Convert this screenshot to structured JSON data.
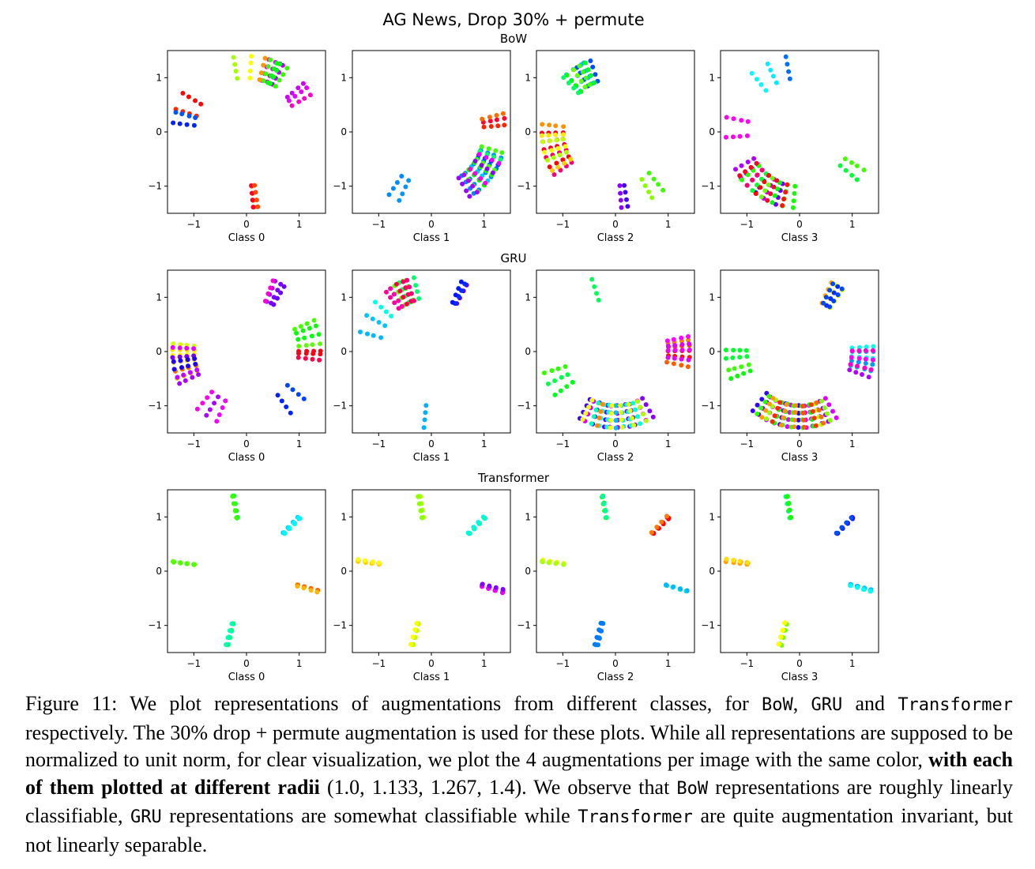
{
  "figure": {
    "title": "AG News, Drop 30% + permute",
    "row_titles": [
      "BoW",
      "GRU",
      "Transformer"
    ],
    "radii": [
      1.0,
      1.133,
      1.267,
      1.4
    ]
  },
  "chart_data": {
    "type": "scatter",
    "title": "AG News, Drop 30% + permute",
    "rows": [
      "BoW",
      "GRU",
      "Transformer"
    ],
    "columns": [
      "Class 0",
      "Class 1",
      "Class 2",
      "Class 3"
    ],
    "xlim": [
      -1.5,
      1.5
    ],
    "ylim": [
      -1.5,
      1.5
    ],
    "xticks": [
      -1,
      0,
      1
    ],
    "yticks": [
      -1,
      0,
      1
    ],
    "xtick_labels": [
      "−1",
      "0",
      "1"
    ],
    "ytick_labels": [
      "−1",
      "0",
      "1"
    ],
    "grid": false,
    "radii": [
      1.0,
      1.133,
      1.267,
      1.4
    ],
    "point_color_encoding": "same color for the 4 augmentations of one image",
    "panels": [
      {
        "row": "BoW",
        "xlabel": "Class 0",
        "clusters": [
          {
            "angles_deg": [
              60,
              72
            ],
            "n": 4,
            "hue": 280
          },
          {
            "angles_deg": [
              58,
              70
            ],
            "n": 4,
            "hue": 130
          },
          {
            "angles_deg": [
              75,
              100
            ],
            "n": 3,
            "hue": 60
          },
          {
            "angles_deg": [
              150,
              162
            ],
            "n": 2,
            "hue": 0
          },
          {
            "angles_deg": [
              166,
              172
            ],
            "n": 2,
            "hue": 210
          },
          {
            "angles_deg": [
              30,
              40
            ],
            "n": 3,
            "hue": 300
          },
          {
            "angles_deg": [
              275,
              278
            ],
            "n": 3,
            "hue": 15
          }
        ]
      },
      {
        "row": "BoW",
        "xlabel": "Class 1",
        "clusters": [
          {
            "angles_deg": [
              -55,
              -20
            ],
            "n": 8,
            "hue": 200
          },
          {
            "angles_deg": [
              -50,
              -15
            ],
            "n": 6,
            "hue": 120
          },
          {
            "angles_deg": [
              -60,
              -25
            ],
            "n": 5,
            "hue": 290
          },
          {
            "angles_deg": [
              5,
              15
            ],
            "n": 3,
            "hue": 10
          },
          {
            "angles_deg": [
              235,
              245
            ],
            "n": 2,
            "hue": 185
          }
        ]
      },
      {
        "row": "BoW",
        "xlabel": "Class 2",
        "clusters": [
          {
            "angles_deg": [
              110,
              130
            ],
            "n": 6,
            "hue": 210
          },
          {
            "angles_deg": [
              115,
              135
            ],
            "n": 5,
            "hue": 120
          },
          {
            "angles_deg": [
              180,
              215
            ],
            "n": 6,
            "hue": 340
          },
          {
            "angles_deg": [
              175,
              210
            ],
            "n": 6,
            "hue": 55
          },
          {
            "angles_deg": [
              -60,
              -50
            ],
            "n": 2,
            "hue": 110
          },
          {
            "angles_deg": [
              -85,
              -80
            ],
            "n": 2,
            "hue": 260
          }
        ]
      },
      {
        "row": "BoW",
        "xlabel": "Class 3",
        "clusters": [
          {
            "angles_deg": [
              210,
              250
            ],
            "n": 6,
            "hue": 265
          },
          {
            "angles_deg": [
              220,
              265
            ],
            "n": 6,
            "hue": 120
          },
          {
            "angles_deg": [
              215,
              255
            ],
            "n": 5,
            "hue": 350
          },
          {
            "angles_deg": [
              100,
              130
            ],
            "n": 3,
            "hue": 190
          },
          {
            "angles_deg": [
              170,
              185
            ],
            "n": 2,
            "hue": 320
          },
          {
            "angles_deg": [
              -40,
              -30
            ],
            "n": 2,
            "hue": 120
          }
        ]
      },
      {
        "row": "GRU",
        "xlabel": "Class 0",
        "clusters": [
          {
            "angles_deg": [
              175,
              200
            ],
            "n": 8,
            "hue": 50
          },
          {
            "angles_deg": [
              178,
              205
            ],
            "n": 6,
            "hue": 270
          },
          {
            "angles_deg": [
              60,
              70
            ],
            "n": 4,
            "hue": 290
          },
          {
            "angles_deg": [
              5,
              25
            ],
            "n": 4,
            "hue": 110
          },
          {
            "angles_deg": [
              -5,
              0
            ],
            "n": 3,
            "hue": 0
          },
          {
            "angles_deg": [
              230,
              245
            ],
            "n": 3,
            "hue": 305
          },
          {
            "angles_deg": [
              -55,
              -40
            ],
            "n": 2,
            "hue": 220
          }
        ]
      },
      {
        "row": "GRU",
        "xlabel": "Class 1",
        "clusters": [
          {
            "angles_deg": [
              105,
              125
            ],
            "n": 6,
            "hue": 120
          },
          {
            "angles_deg": [
              108,
              128
            ],
            "n": 5,
            "hue": 320
          },
          {
            "angles_deg": [
              60,
              66
            ],
            "n": 3,
            "hue": 250
          },
          {
            "angles_deg": [
              140,
              165
            ],
            "n": 3,
            "hue": 185
          },
          {
            "angles_deg": [
              264,
              266
            ],
            "n": 1,
            "hue": 185
          }
        ]
      },
      {
        "row": "GRU",
        "xlabel": "Class 2",
        "clusters": [
          {
            "angles_deg": [
              -120,
              -60
            ],
            "n": 10,
            "hue": 275
          },
          {
            "angles_deg": [
              -110,
              -70
            ],
            "n": 7,
            "hue": 185
          },
          {
            "angles_deg": [
              -115,
              -65
            ],
            "n": 6,
            "hue": 55
          },
          {
            "angles_deg": [
              -10,
              10
            ],
            "n": 5,
            "hue": 10
          },
          {
            "angles_deg": [
              -5,
              12
            ],
            "n": 4,
            "hue": 300
          },
          {
            "angles_deg": [
              195,
              215
            ],
            "n": 3,
            "hue": 125
          },
          {
            "angles_deg": [
              110,
              112
            ],
            "n": 1,
            "hue": 125
          }
        ]
      },
      {
        "row": "GRU",
        "xlabel": "Class 3",
        "clusters": [
          {
            "angles_deg": [
              -130,
              -60
            ],
            "n": 12,
            "hue": 270
          },
          {
            "angles_deg": [
              -125,
              -65
            ],
            "n": 9,
            "hue": 100
          },
          {
            "angles_deg": [
              -120,
              -70
            ],
            "n": 7,
            "hue": 15
          },
          {
            "angles_deg": [
              -15,
              5
            ],
            "n": 5,
            "hue": 185
          },
          {
            "angles_deg": [
              -20,
              0
            ],
            "n": 4,
            "hue": 300
          },
          {
            "angles_deg": [
              180,
              200
            ],
            "n": 4,
            "hue": 120
          },
          {
            "angles_deg": [
              55,
              65
            ],
            "n": 3,
            "hue": 55
          },
          {
            "angles_deg": [
              55,
              62
            ],
            "n": 3,
            "hue": 205
          }
        ]
      },
      {
        "row": "Transformer",
        "xlabel": "Class 0",
        "clusters": [
          {
            "angles_deg": [
              100,
              100
            ],
            "n": 4,
            "hue": 130
          },
          {
            "angles_deg": [
              45,
              45
            ],
            "n": 4,
            "hue": 180
          },
          {
            "angles_deg": [
              -15,
              -15
            ],
            "n": 4,
            "hue": 40
          },
          {
            "angles_deg": [
              255,
              255
            ],
            "n": 4,
            "hue": 165
          },
          {
            "angles_deg": [
              172,
              172
            ],
            "n": 4,
            "hue": 100
          }
        ]
      },
      {
        "row": "Transformer",
        "xlabel": "Class 1",
        "clusters": [
          {
            "angles_deg": [
              100,
              100
            ],
            "n": 4,
            "hue": 90
          },
          {
            "angles_deg": [
              45,
              45
            ],
            "n": 4,
            "hue": 185
          },
          {
            "angles_deg": [
              -15,
              -15
            ],
            "n": 4,
            "hue": 285
          },
          {
            "angles_deg": [
              255,
              255
            ],
            "n": 4,
            "hue": 85
          },
          {
            "angles_deg": [
              172,
              172
            ],
            "n": 4,
            "hue": 38
          }
        ]
      },
      {
        "row": "Transformer",
        "xlabel": "Class 2",
        "clusters": [
          {
            "angles_deg": [
              100,
              100
            ],
            "n": 4,
            "hue": 140
          },
          {
            "angles_deg": [
              45,
              45
            ],
            "n": 4,
            "hue": 20
          },
          {
            "angles_deg": [
              -15,
              -15
            ],
            "n": 4,
            "hue": 180
          },
          {
            "angles_deg": [
              255,
              255
            ],
            "n": 4,
            "hue": 205
          },
          {
            "angles_deg": [
              172,
              172
            ],
            "n": 4,
            "hue": 85
          }
        ]
      },
      {
        "row": "Transformer",
        "xlabel": "Class 3",
        "clusters": [
          {
            "angles_deg": [
              100,
              100
            ],
            "n": 4,
            "hue": 130
          },
          {
            "angles_deg": [
              45,
              45
            ],
            "n": 4,
            "hue": 235
          },
          {
            "angles_deg": [
              -15,
              -15
            ],
            "n": 4,
            "hue": 180
          },
          {
            "angles_deg": [
              255,
              255
            ],
            "n": 4,
            "hue": 75
          },
          {
            "angles_deg": [
              172,
              172
            ],
            "n": 4,
            "hue": 38
          }
        ]
      }
    ]
  },
  "caption": {
    "p1": "Figure 11: We plot representations of augmentations from different classes, for ",
    "m1": "BoW",
    "p2": ", ",
    "m2": "GRU",
    "p3": " and ",
    "m3": "Transformer",
    "p4": " respectively. The 30% drop + permute augmentation is used for these plots. While all representations are supposed to be normalized to unit norm, for clear visualization, we plot the 4 augmentations per image with the same color, ",
    "b1": "with each of them plotted at different radii",
    "p5": " (1.0, 1.133, 1.267, 1.4). We observe that ",
    "m4": "BoW",
    "p6": " representations are roughly linearly classifiable, ",
    "m5": "GRU",
    "p7": " representations are somewhat classifiable while ",
    "m6": "Transformer",
    "p8": " are quite augmentation invariant, but not linearly separable."
  }
}
